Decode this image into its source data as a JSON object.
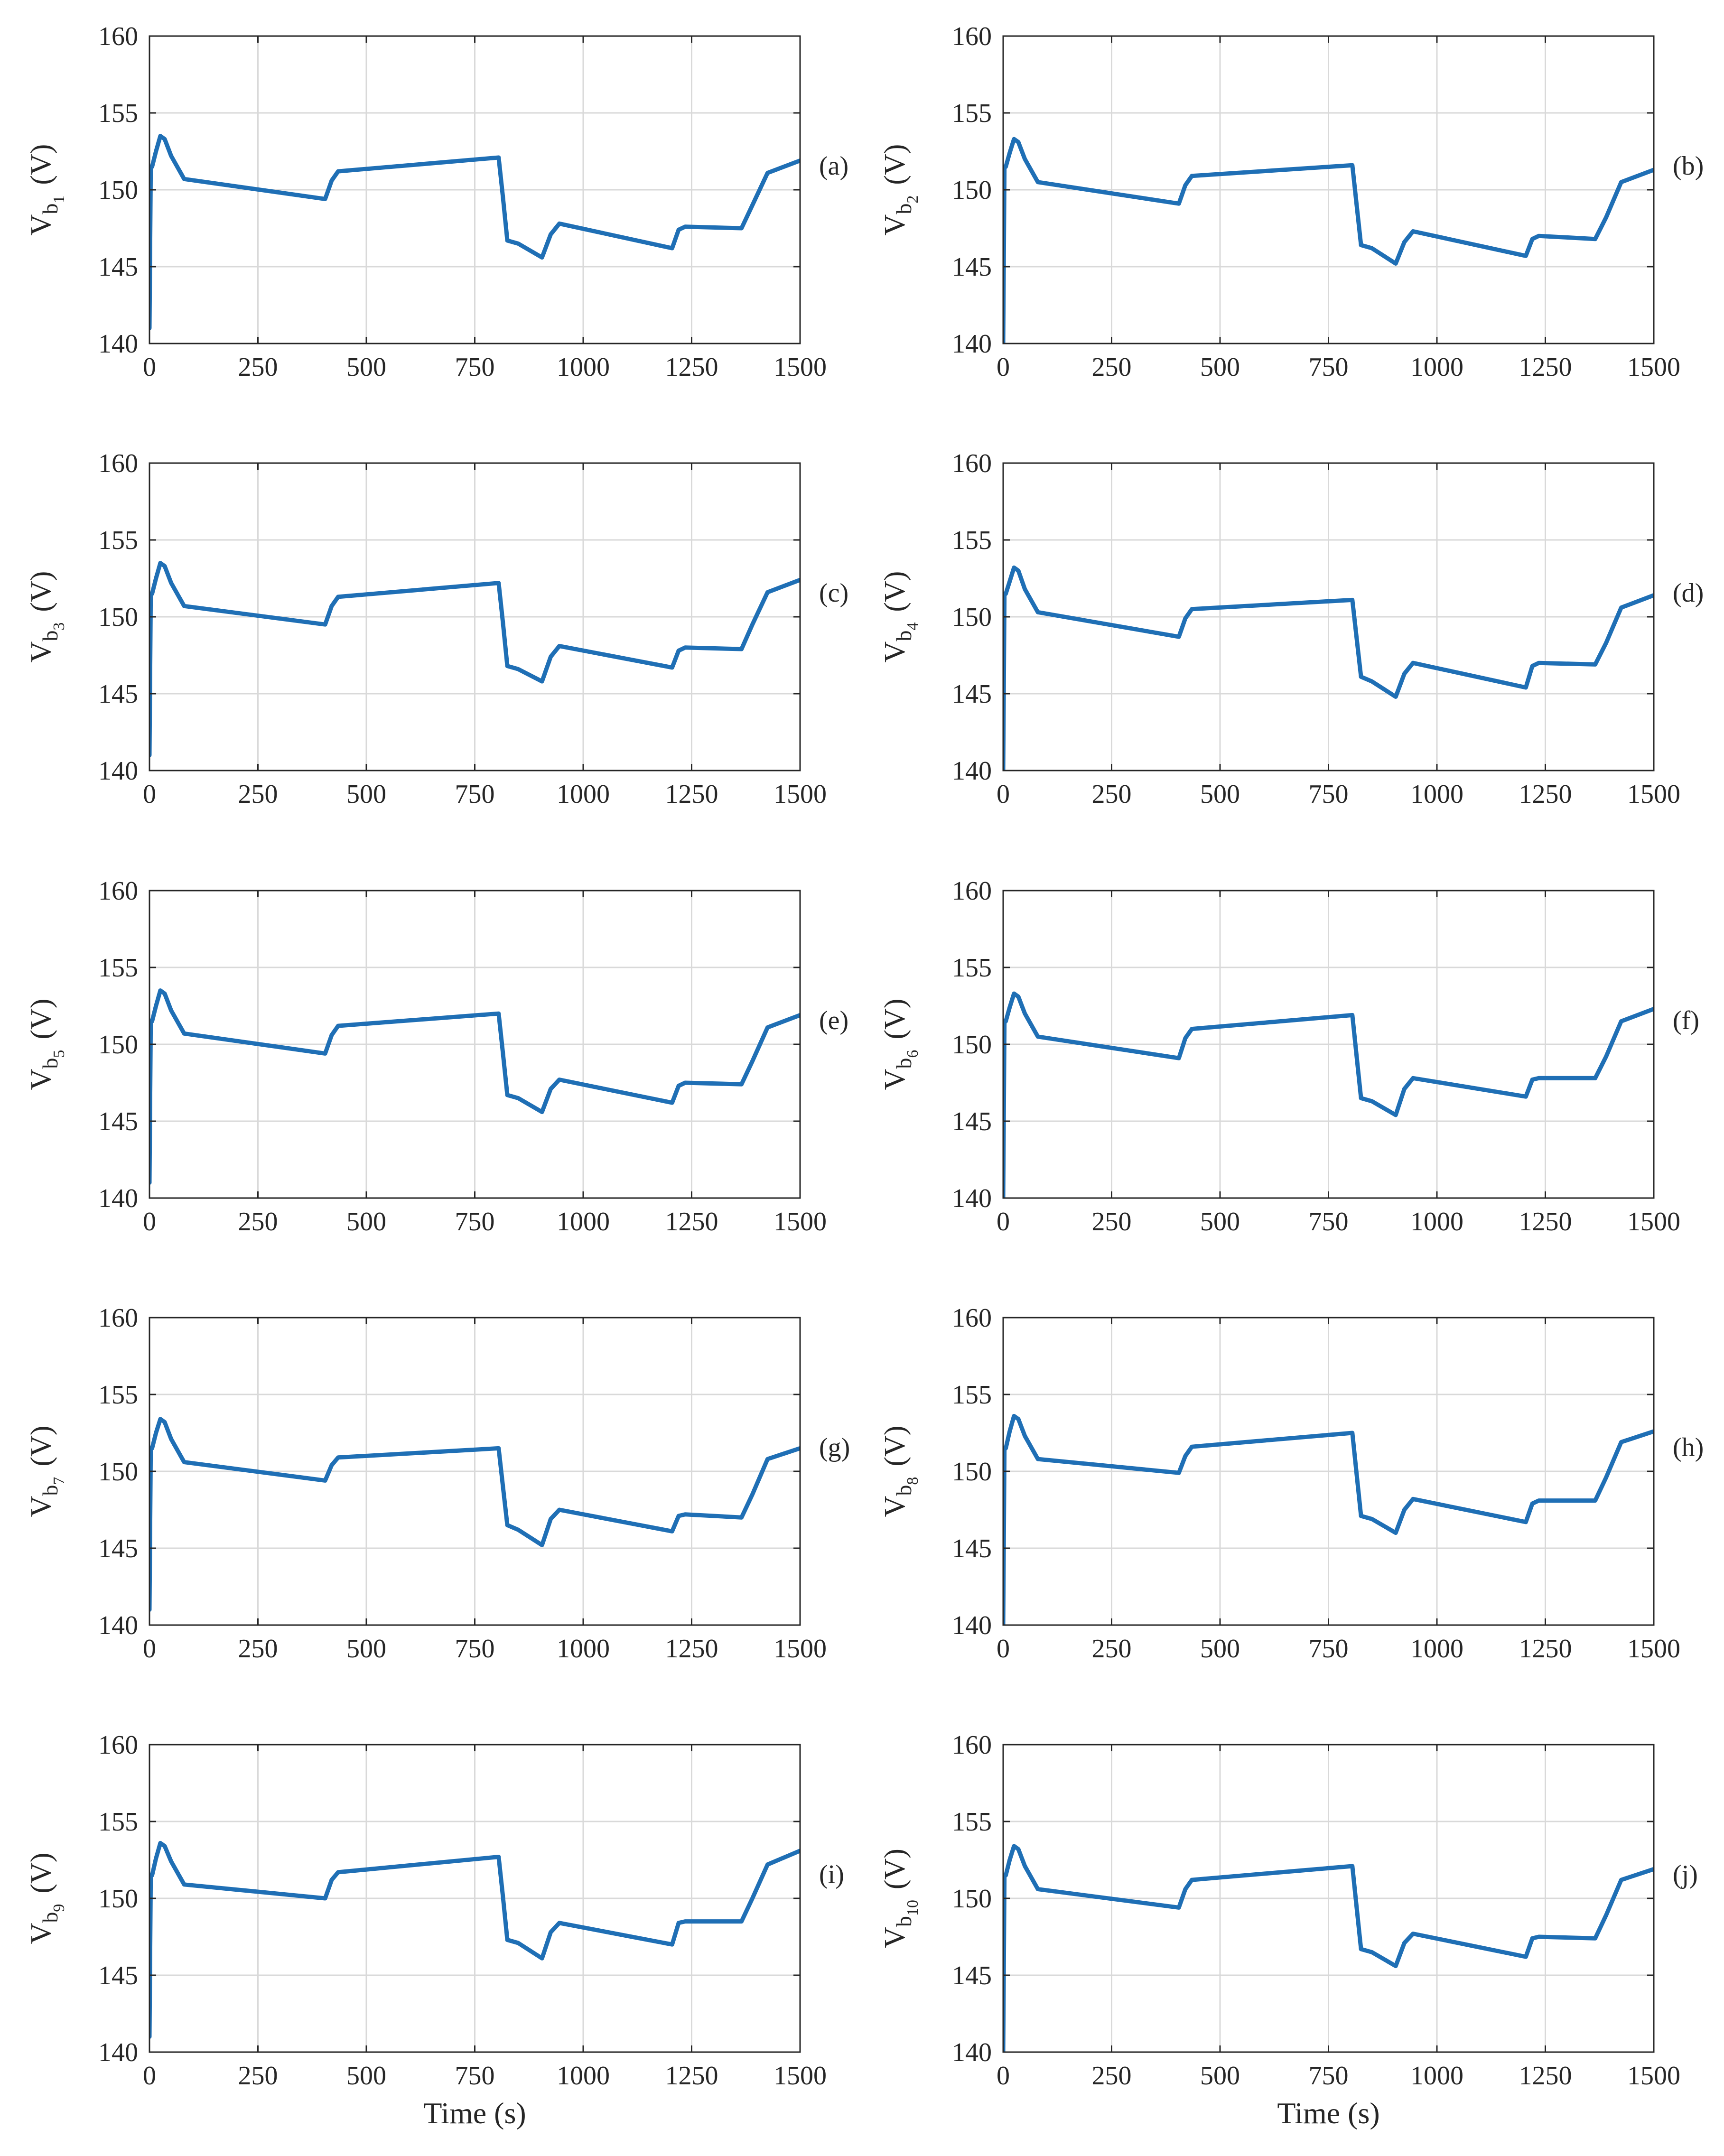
{
  "figure": {
    "series_color": "#1f6fb5",
    "grid_color": "#d9d9d9",
    "axis_color": "#262626"
  },
  "chart_data": [
    {
      "type": "line",
      "panel_label": "(a)",
      "ylabel_main": "V",
      "ylabel_sub1": "b",
      "ylabel_sub2": "1",
      "ylabel_unit": "(V)",
      "xlabel": "",
      "xlim": [
        0,
        1500
      ],
      "ylim": [
        140,
        160
      ],
      "xticks": [
        0,
        250,
        500,
        750,
        1000,
        1250,
        1500
      ],
      "yticks": [
        140,
        145,
        150,
        155,
        160
      ],
      "grid": true,
      "x": [
        0,
        3,
        6,
        15,
        25,
        35,
        50,
        80,
        405,
        420,
        435,
        805,
        815,
        825,
        850,
        905,
        925,
        945,
        1205,
        1220,
        1235,
        1365,
        1390,
        1425,
        1500
      ],
      "y": [
        141.0,
        151.5,
        151.5,
        152.5,
        153.5,
        153.3,
        152.2,
        150.7,
        149.4,
        150.6,
        151.2,
        152.1,
        149.5,
        146.7,
        146.5,
        145.6,
        147.1,
        147.8,
        146.2,
        147.4,
        147.6,
        147.5,
        149.0,
        151.1,
        151.9
      ]
    },
    {
      "type": "line",
      "panel_label": "(b)",
      "ylabel_main": "V",
      "ylabel_sub1": "b",
      "ylabel_sub2": "2",
      "ylabel_unit": "(V)",
      "xlabel": "",
      "xlim": [
        0,
        1500
      ],
      "ylim": [
        140,
        160
      ],
      "xticks": [
        0,
        250,
        500,
        750,
        1000,
        1250,
        1500
      ],
      "yticks": [
        140,
        145,
        150,
        155,
        160
      ],
      "grid": true,
      "x": [
        0,
        3,
        6,
        15,
        25,
        35,
        50,
        80,
        405,
        420,
        435,
        805,
        815,
        825,
        850,
        905,
        925,
        945,
        1205,
        1220,
        1235,
        1365,
        1390,
        1425,
        1500
      ],
      "y": [
        140.0,
        151.5,
        151.5,
        152.4,
        153.3,
        153.1,
        152.0,
        150.5,
        149.1,
        150.3,
        150.9,
        151.6,
        149.0,
        146.4,
        146.2,
        145.2,
        146.6,
        147.3,
        145.7,
        146.8,
        147.0,
        146.8,
        148.2,
        150.5,
        151.3
      ]
    },
    {
      "type": "line",
      "panel_label": "(c)",
      "ylabel_main": "V",
      "ylabel_sub1": "b",
      "ylabel_sub2": "3",
      "ylabel_unit": "(V)",
      "xlabel": "",
      "xlim": [
        0,
        1500
      ],
      "ylim": [
        140,
        160
      ],
      "xticks": [
        0,
        250,
        500,
        750,
        1000,
        1250,
        1500
      ],
      "yticks": [
        140,
        145,
        150,
        155,
        160
      ],
      "grid": true,
      "x": [
        0,
        3,
        6,
        15,
        25,
        35,
        50,
        80,
        405,
        420,
        435,
        805,
        815,
        825,
        850,
        905,
        925,
        945,
        1205,
        1220,
        1235,
        1365,
        1390,
        1425,
        1500
      ],
      "y": [
        141.0,
        151.5,
        151.5,
        152.5,
        153.5,
        153.3,
        152.2,
        150.7,
        149.5,
        150.7,
        151.3,
        152.2,
        149.6,
        146.8,
        146.6,
        145.8,
        147.4,
        148.1,
        146.7,
        147.8,
        148.0,
        147.9,
        149.5,
        151.6,
        152.4
      ]
    },
    {
      "type": "line",
      "panel_label": "(d)",
      "ylabel_main": "V",
      "ylabel_sub1": "b",
      "ylabel_sub2": "4",
      "ylabel_unit": "(V)",
      "xlabel": "",
      "xlim": [
        0,
        1500
      ],
      "ylim": [
        140,
        160
      ],
      "xticks": [
        0,
        250,
        500,
        750,
        1000,
        1250,
        1500
      ],
      "yticks": [
        140,
        145,
        150,
        155,
        160
      ],
      "grid": true,
      "x": [
        0,
        3,
        6,
        15,
        25,
        35,
        50,
        80,
        405,
        420,
        435,
        805,
        815,
        825,
        850,
        905,
        925,
        945,
        1205,
        1220,
        1235,
        1365,
        1390,
        1425,
        1500
      ],
      "y": [
        140.0,
        151.5,
        151.5,
        152.3,
        153.2,
        153.0,
        151.8,
        150.3,
        148.7,
        149.9,
        150.5,
        151.1,
        148.6,
        146.1,
        145.8,
        144.8,
        146.3,
        147.0,
        145.4,
        146.8,
        147.0,
        146.9,
        148.3,
        150.6,
        151.4
      ]
    },
    {
      "type": "line",
      "panel_label": "(e)",
      "ylabel_main": "V",
      "ylabel_sub1": "b",
      "ylabel_sub2": "5",
      "ylabel_unit": "(V)",
      "xlabel": "",
      "xlim": [
        0,
        1500
      ],
      "ylim": [
        140,
        160
      ],
      "xticks": [
        0,
        250,
        500,
        750,
        1000,
        1250,
        1500
      ],
      "yticks": [
        140,
        145,
        150,
        155,
        160
      ],
      "grid": true,
      "x": [
        0,
        3,
        6,
        15,
        25,
        35,
        50,
        80,
        405,
        420,
        435,
        805,
        815,
        825,
        850,
        905,
        925,
        945,
        1205,
        1220,
        1235,
        1365,
        1390,
        1425,
        1500
      ],
      "y": [
        141.0,
        151.5,
        151.5,
        152.5,
        153.5,
        153.3,
        152.2,
        150.7,
        149.4,
        150.6,
        151.2,
        152.0,
        149.4,
        146.7,
        146.5,
        145.6,
        147.1,
        147.7,
        146.2,
        147.3,
        147.5,
        147.4,
        148.9,
        151.1,
        151.9
      ]
    },
    {
      "type": "line",
      "panel_label": "(f)",
      "ylabel_main": "V",
      "ylabel_sub1": "b",
      "ylabel_sub2": "6",
      "ylabel_unit": "(V)",
      "xlabel": "",
      "xlim": [
        0,
        1500
      ],
      "ylim": [
        140,
        160
      ],
      "xticks": [
        0,
        250,
        500,
        750,
        1000,
        1250,
        1500
      ],
      "yticks": [
        140,
        145,
        150,
        155,
        160
      ],
      "grid": true,
      "x": [
        0,
        3,
        6,
        15,
        25,
        35,
        50,
        80,
        405,
        420,
        435,
        805,
        815,
        825,
        850,
        905,
        925,
        945,
        1205,
        1220,
        1235,
        1365,
        1390,
        1425,
        1500
      ],
      "y": [
        140.0,
        151.5,
        151.5,
        152.4,
        153.3,
        153.1,
        152.0,
        150.5,
        149.1,
        150.4,
        151.0,
        151.9,
        149.2,
        146.5,
        146.3,
        145.4,
        147.1,
        147.8,
        146.6,
        147.7,
        147.8,
        147.8,
        149.2,
        151.5,
        152.3
      ]
    },
    {
      "type": "line",
      "panel_label": "(g)",
      "ylabel_main": "V",
      "ylabel_sub1": "b",
      "ylabel_sub2": "7",
      "ylabel_unit": "(V)",
      "xlabel": "",
      "xlim": [
        0,
        1500
      ],
      "ylim": [
        140,
        160
      ],
      "xticks": [
        0,
        250,
        500,
        750,
        1000,
        1250,
        1500
      ],
      "yticks": [
        140,
        145,
        150,
        155,
        160
      ],
      "grid": true,
      "x": [
        0,
        3,
        6,
        15,
        25,
        35,
        50,
        80,
        405,
        420,
        435,
        805,
        815,
        825,
        850,
        905,
        925,
        945,
        1205,
        1220,
        1235,
        1365,
        1390,
        1425,
        1500
      ],
      "y": [
        141.0,
        151.5,
        151.5,
        152.5,
        153.4,
        153.2,
        152.1,
        150.6,
        149.4,
        150.4,
        150.9,
        151.5,
        149.0,
        146.5,
        146.2,
        145.2,
        146.9,
        147.5,
        146.1,
        147.1,
        147.2,
        147.0,
        148.5,
        150.8,
        151.5
      ]
    },
    {
      "type": "line",
      "panel_label": "(h)",
      "ylabel_main": "V",
      "ylabel_sub1": "b",
      "ylabel_sub2": "8",
      "ylabel_unit": "(V)",
      "xlabel": "",
      "xlim": [
        0,
        1500
      ],
      "ylim": [
        140,
        160
      ],
      "xticks": [
        0,
        250,
        500,
        750,
        1000,
        1250,
        1500
      ],
      "yticks": [
        140,
        145,
        150,
        155,
        160
      ],
      "grid": true,
      "x": [
        0,
        3,
        6,
        15,
        25,
        35,
        50,
        80,
        405,
        420,
        435,
        805,
        815,
        825,
        850,
        905,
        925,
        945,
        1205,
        1220,
        1235,
        1365,
        1390,
        1425,
        1500
      ],
      "y": [
        140.0,
        151.5,
        151.5,
        152.6,
        153.6,
        153.4,
        152.3,
        150.8,
        149.9,
        151.0,
        151.6,
        152.5,
        149.8,
        147.1,
        146.9,
        146.0,
        147.5,
        148.2,
        146.7,
        147.9,
        148.1,
        148.1,
        149.6,
        151.9,
        152.6
      ]
    },
    {
      "type": "line",
      "panel_label": "(i)",
      "ylabel_main": "V",
      "ylabel_sub1": "b",
      "ylabel_sub2": "9",
      "ylabel_unit": "(V)",
      "xlabel": "Time (s)",
      "xlim": [
        0,
        1500
      ],
      "ylim": [
        140,
        160
      ],
      "xticks": [
        0,
        250,
        500,
        750,
        1000,
        1250,
        1500
      ],
      "yticks": [
        140,
        145,
        150,
        155,
        160
      ],
      "grid": true,
      "x": [
        0,
        3,
        6,
        15,
        25,
        35,
        50,
        80,
        405,
        420,
        435,
        805,
        815,
        825,
        850,
        905,
        925,
        945,
        1205,
        1220,
        1235,
        1365,
        1390,
        1425,
        1500
      ],
      "y": [
        141.0,
        151.5,
        151.5,
        152.6,
        153.6,
        153.4,
        152.4,
        150.9,
        150.0,
        151.2,
        151.7,
        152.7,
        150.1,
        147.3,
        147.1,
        146.1,
        147.8,
        148.4,
        147.0,
        148.4,
        148.5,
        148.5,
        150.0,
        152.2,
        153.1
      ]
    },
    {
      "type": "line",
      "panel_label": "(j)",
      "ylabel_main": "V",
      "ylabel_sub1": "b",
      "ylabel_sub2": "10",
      "ylabel_unit": "(V)",
      "xlabel": "Time (s)",
      "xlim": [
        0,
        1500
      ],
      "ylim": [
        140,
        160
      ],
      "xticks": [
        0,
        250,
        500,
        750,
        1000,
        1250,
        1500
      ],
      "yticks": [
        140,
        145,
        150,
        155,
        160
      ],
      "grid": true,
      "x": [
        0,
        3,
        6,
        15,
        25,
        35,
        50,
        80,
        405,
        420,
        435,
        805,
        815,
        825,
        850,
        905,
        925,
        945,
        1205,
        1220,
        1235,
        1365,
        1390,
        1425,
        1500
      ],
      "y": [
        140.0,
        151.5,
        151.5,
        152.5,
        153.4,
        153.2,
        152.1,
        150.6,
        149.4,
        150.6,
        151.2,
        152.1,
        149.4,
        146.7,
        146.5,
        145.6,
        147.1,
        147.7,
        146.2,
        147.4,
        147.5,
        147.4,
        148.9,
        151.2,
        151.9
      ]
    }
  ]
}
